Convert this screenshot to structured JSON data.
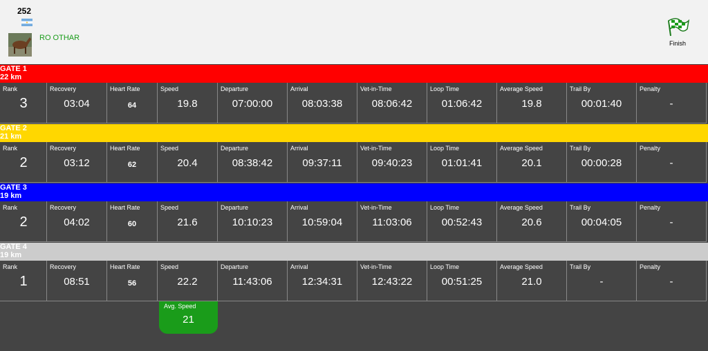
{
  "header": {
    "number": "252",
    "rider": "RO OTHAR",
    "finish": "Finish"
  },
  "columns": [
    "Rank",
    "Recovery",
    "Heart Rate",
    "Speed",
    "Departure",
    "Arrival",
    "Vet-in-Time",
    "Loop Time",
    "Average Speed",
    "Trail By",
    "Penalty"
  ],
  "gates": [
    {
      "name": "GATE 1",
      "distance": "22 km",
      "color": "#ff0000",
      "values": [
        "3",
        "03:04",
        "64",
        "19.8",
        "07:00:00",
        "08:03:38",
        "08:06:42",
        "01:06:42",
        "19.8",
        "00:01:40",
        "-"
      ]
    },
    {
      "name": "GATE 2",
      "distance": "21 km",
      "color": "#ffd700",
      "values": [
        "2",
        "03:12",
        "62",
        "20.4",
        "08:38:42",
        "09:37:11",
        "09:40:23",
        "01:01:41",
        "20.1",
        "00:00:28",
        "-"
      ]
    },
    {
      "name": "GATE 3",
      "distance": "19 km",
      "color": "#0000ff",
      "values": [
        "2",
        "04:02",
        "60",
        "21.6",
        "10:10:23",
        "10:59:04",
        "11:03:06",
        "00:52:43",
        "20.6",
        "00:04:05",
        "-"
      ]
    },
    {
      "name": "GATE 4",
      "distance": "19 km",
      "color": "#cccccc",
      "values": [
        "1",
        "08:51",
        "56",
        "22.2",
        "11:43:06",
        "12:34:31",
        "12:43:22",
        "00:51:25",
        "21.0",
        "-",
        "-"
      ]
    }
  ],
  "summary": {
    "label": "Avg. Speed",
    "value": "21"
  }
}
